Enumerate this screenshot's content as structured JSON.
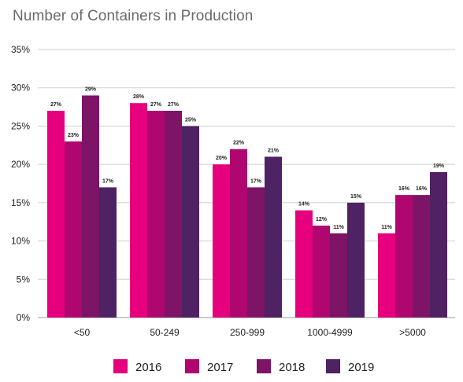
{
  "chart_data": {
    "type": "bar",
    "title": "Number of Containers in Production",
    "xlabel": "",
    "ylabel": "",
    "categories": [
      "<50",
      "50-249",
      "250-999",
      "1000-4999",
      ">5000"
    ],
    "series": [
      {
        "name": "2016",
        "values": [
          27,
          28,
          20,
          14,
          11
        ],
        "labels": [
          "27%",
          "28%",
          "20%",
          "14%",
          "11%"
        ],
        "color": "#e6007e"
      },
      {
        "name": "2017",
        "values": [
          23,
          27,
          22,
          12,
          16
        ],
        "labels": [
          "23%",
          "27%",
          "22%",
          "12%",
          "16%"
        ],
        "color": "#b0066f"
      },
      {
        "name": "2018",
        "values": [
          29,
          27,
          17,
          11,
          16
        ],
        "labels": [
          "29%",
          "27%",
          "17%",
          "11%",
          "16%"
        ],
        "color": "#7d1466"
      },
      {
        "name": "2019",
        "values": [
          17,
          25,
          21,
          15,
          19
        ],
        "labels": [
          "17%",
          "25%",
          "21%",
          "15%",
          "19%"
        ],
        "color": "#4e2263"
      }
    ],
    "ylim": [
      0,
      35
    ],
    "yticks": [
      "0%",
      "5%",
      "10%",
      "15%",
      "20%",
      "25%",
      "30%",
      "35%"
    ],
    "ytick_values": [
      0,
      5,
      10,
      15,
      20,
      25,
      30,
      35
    ],
    "grid": true,
    "legend_position": "bottom"
  }
}
